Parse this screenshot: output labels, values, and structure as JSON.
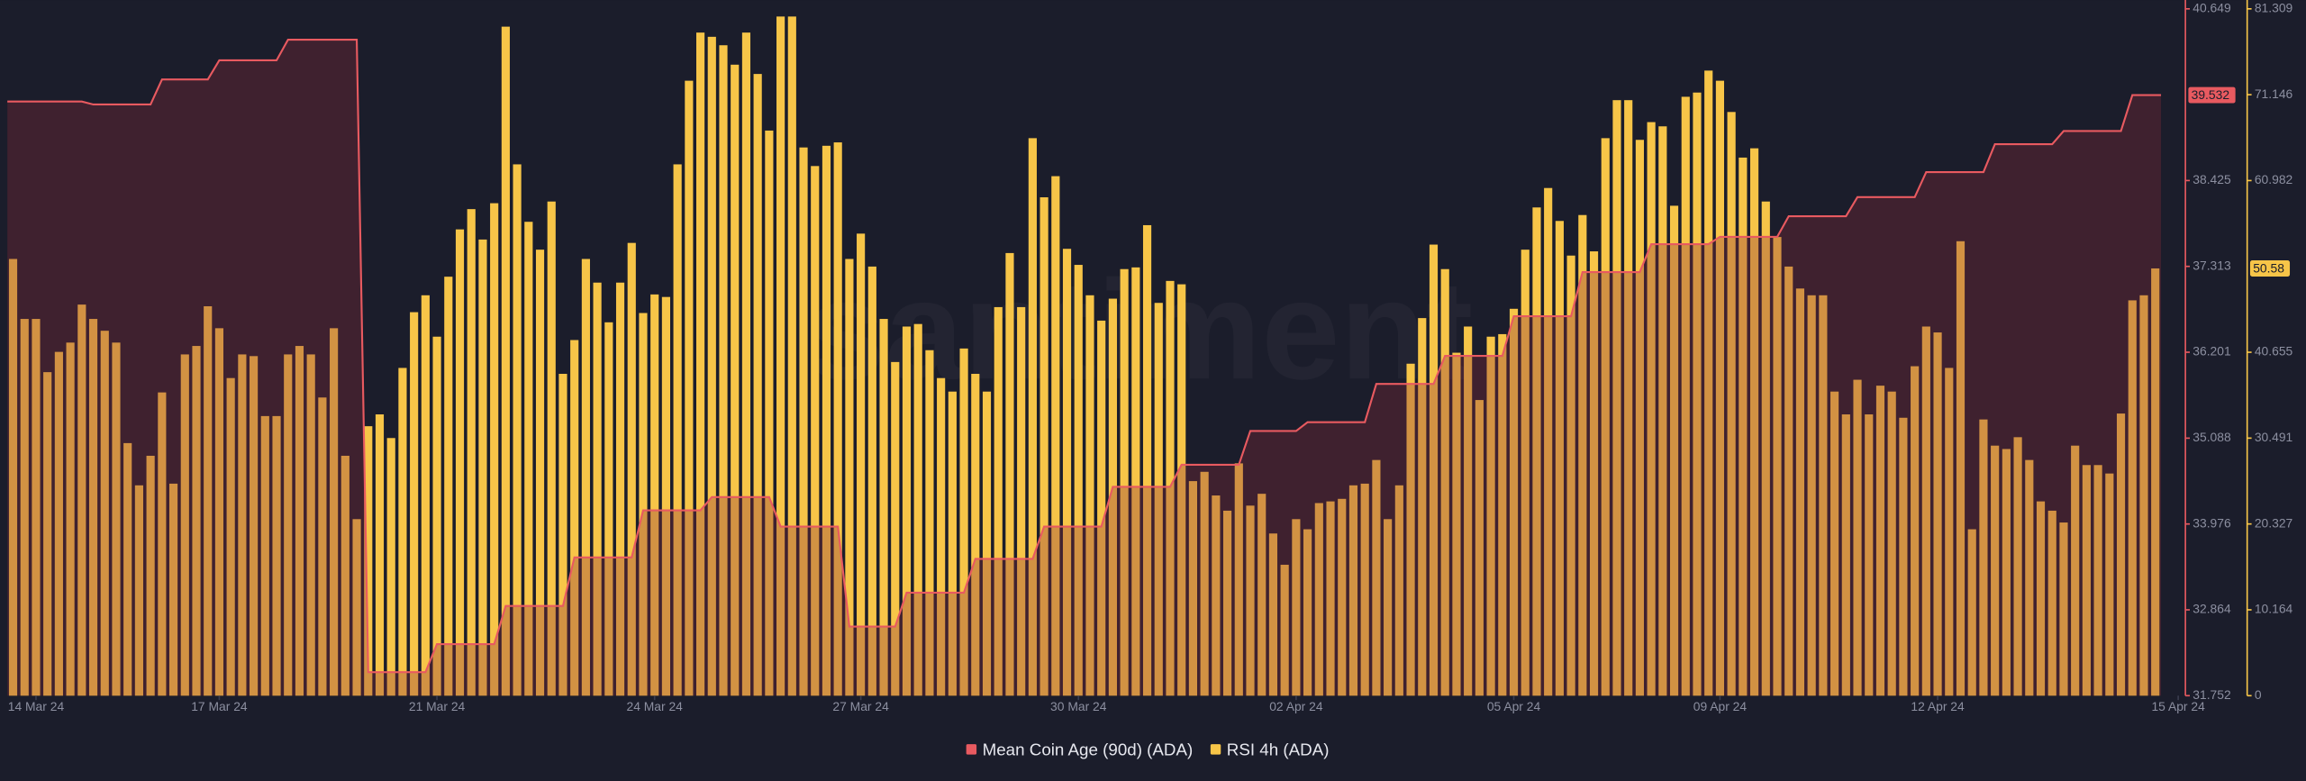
{
  "chart_data": {
    "type": "combo",
    "watermark": "santiment",
    "xlim": [
      -0.5,
      189.5
    ],
    "xticks": [
      {
        "value": 2,
        "label": "14 Mar 24"
      },
      {
        "value": 18,
        "label": "17 Mar 24"
      },
      {
        "value": 37,
        "label": "21 Mar 24"
      },
      {
        "value": 56,
        "label": "24 Mar 24"
      },
      {
        "value": 74,
        "label": "27 Mar 24"
      },
      {
        "value": 93,
        "label": "30 Mar 24"
      },
      {
        "value": 112,
        "label": "02 Apr 24"
      },
      {
        "value": 131,
        "label": "05 Apr 24"
      },
      {
        "value": 149,
        "label": "09 Apr 24"
      },
      {
        "value": 168,
        "label": "12 Apr 24"
      },
      {
        "value": 189,
        "label": "15 Apr 24"
      }
    ],
    "ylim": [
      31.752,
      40.649
    ],
    "yticks": [
      31.752,
      32.864,
      33.976,
      35.088,
      36.201,
      37.313,
      38.425,
      40.649
    ],
    "y2lim": [
      0,
      81.309
    ],
    "y2ticks": [
      0,
      10.164,
      20.327,
      30.491,
      40.655,
      60.982,
      71.146,
      81.309
    ],
    "series": [
      {
        "name": "Mean Coin Age (90d) (ADA)",
        "type": "area",
        "axis": "y",
        "color": "#e85a60",
        "values": [
          39.449,
          39.449,
          39.449,
          39.449,
          39.449,
          39.449,
          39.449,
          39.41,
          39.41,
          39.41,
          39.41,
          39.41,
          39.41,
          39.735,
          39.735,
          39.735,
          39.735,
          39.735,
          39.982,
          39.982,
          39.982,
          39.982,
          39.982,
          39.982,
          40.249,
          40.249,
          40.249,
          40.249,
          40.249,
          40.249,
          40.249,
          32.057,
          32.057,
          32.057,
          32.057,
          32.057,
          32.057,
          32.42,
          32.42,
          32.42,
          32.42,
          32.42,
          32.42,
          32.914,
          32.914,
          32.914,
          32.914,
          32.914,
          32.914,
          33.543,
          33.543,
          33.543,
          33.543,
          33.543,
          33.543,
          34.152,
          34.152,
          34.152,
          34.152,
          34.152,
          34.152,
          34.324,
          34.324,
          34.324,
          34.324,
          34.324,
          34.324,
          33.943,
          33.943,
          33.943,
          33.943,
          33.943,
          33.943,
          32.647,
          32.647,
          32.647,
          32.647,
          32.647,
          33.086,
          33.086,
          33.086,
          33.086,
          33.086,
          33.086,
          33.524,
          33.524,
          33.524,
          33.524,
          33.524,
          33.524,
          33.943,
          33.943,
          33.943,
          33.943,
          33.943,
          33.943,
          34.457,
          34.457,
          34.457,
          34.457,
          34.457,
          34.457,
          34.743,
          34.743,
          34.743,
          34.743,
          34.743,
          34.743,
          35.181,
          35.181,
          35.181,
          35.181,
          35.181,
          35.295,
          35.295,
          35.295,
          35.295,
          35.295,
          35.295,
          35.791,
          35.791,
          35.791,
          35.791,
          35.791,
          35.791,
          36.153,
          36.153,
          36.153,
          36.153,
          36.153,
          36.153,
          36.667,
          36.667,
          36.667,
          36.667,
          36.667,
          36.667,
          37.239,
          37.239,
          37.239,
          37.239,
          37.239,
          37.239,
          37.601,
          37.601,
          37.601,
          37.601,
          37.601,
          37.601,
          37.696,
          37.696,
          37.696,
          37.696,
          37.696,
          37.696,
          37.963,
          37.963,
          37.963,
          37.963,
          37.963,
          37.963,
          38.21,
          38.21,
          38.21,
          38.21,
          38.21,
          38.21,
          38.534,
          38.534,
          38.534,
          38.534,
          38.534,
          38.534,
          38.896,
          38.896,
          38.896,
          38.896,
          38.896,
          38.896,
          39.067,
          39.067,
          39.067,
          39.067,
          39.067,
          39.067,
          39.532,
          39.532,
          39.532
        ]
      },
      {
        "name": "RSI 4h (ADA)",
        "type": "bar",
        "axis": "y2",
        "color": "#f7c548",
        "values": [
          51.7,
          44.6,
          44.6,
          38.3,
          40.7,
          41.8,
          46.3,
          44.6,
          43.2,
          41.8,
          29.9,
          24.9,
          28.4,
          35.9,
          25.1,
          40.4,
          41.4,
          46.1,
          43.5,
          37.6,
          40.4,
          40.2,
          33.1,
          33.1,
          40.4,
          41.4,
          40.4,
          35.3,
          43.5,
          28.4,
          20.9,
          31.9,
          33.3,
          30.5,
          38.8,
          45.4,
          47.4,
          42.5,
          49.6,
          55.2,
          57.6,
          54.0,
          58.3,
          79.2,
          62.9,
          56.1,
          52.8,
          58.5,
          38.1,
          42.1,
          51.7,
          48.9,
          44.2,
          48.9,
          53.6,
          45.3,
          47.5,
          47.2,
          62.9,
          72.8,
          78.5,
          78.0,
          77.0,
          74.7,
          78.5,
          73.6,
          66.9,
          80.4,
          80.4,
          64.9,
          62.7,
          65.1,
          65.5,
          51.7,
          54.7,
          50.8,
          44.6,
          39.5,
          43.7,
          44.0,
          40.9,
          37.6,
          36.0,
          41.1,
          38.1,
          36.0,
          46.0,
          52.4,
          46.0,
          66.0,
          59.0,
          61.5,
          52.9,
          51.0,
          47.4,
          44.4,
          47.0,
          50.5,
          50.7,
          55.7,
          46.5,
          49.1,
          48.7,
          25.4,
          26.5,
          23.7,
          21.9,
          27.5,
          22.5,
          23.9,
          19.2,
          15.5,
          20.9,
          19.7,
          22.8,
          23.0,
          23.3,
          24.9,
          25.1,
          27.9,
          20.9,
          24.9,
          39.3,
          44.7,
          53.4,
          50.5,
          40.6,
          43.7,
          35.0,
          42.5,
          42.8,
          45.8,
          52.8,
          57.8,
          60.1,
          56.2,
          52.1,
          56.9,
          52.6,
          66.0,
          70.5,
          70.5,
          65.8,
          67.9,
          67.4,
          58.0,
          70.9,
          71.4,
          74.0,
          72.8,
          69.1,
          63.7,
          64.8,
          58.5,
          54.3,
          50.8,
          48.2,
          47.4,
          47.4,
          36.0,
          33.3,
          37.4,
          33.3,
          36.7,
          36.0,
          32.9,
          39.0,
          43.7,
          43.0,
          38.8,
          53.8,
          19.7,
          32.7,
          29.6,
          29.2,
          30.6,
          27.9,
          23.0,
          21.9,
          20.5,
          29.6,
          27.3,
          27.3,
          26.3,
          33.4,
          46.8,
          47.4,
          50.58
        ]
      }
    ]
  }
}
